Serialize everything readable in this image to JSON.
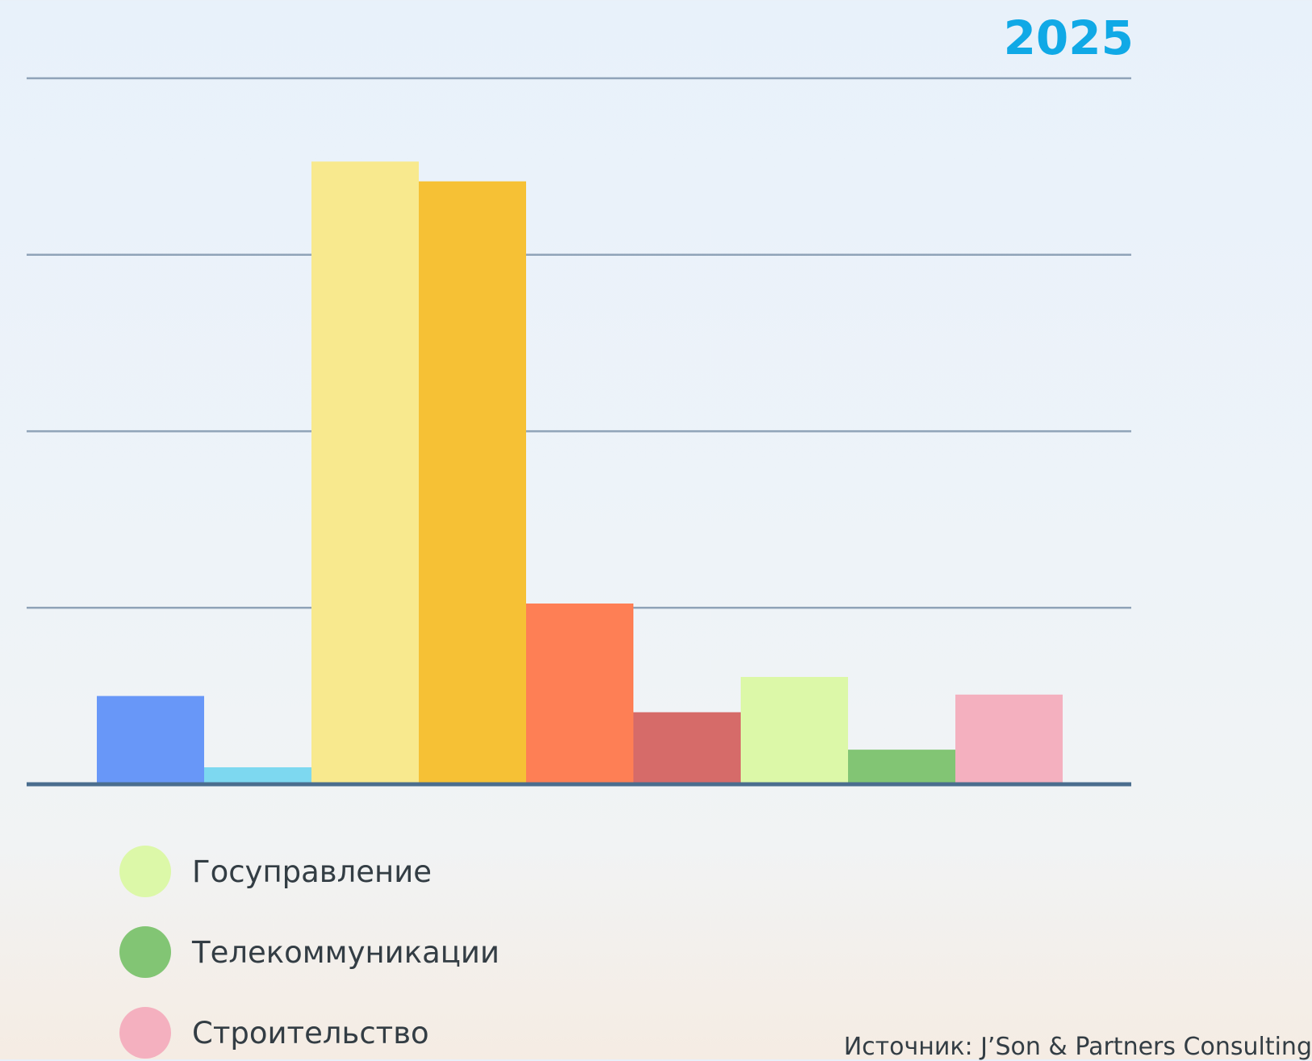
{
  "chart_data": {
    "type": "bar",
    "title": "2025",
    "xlabel": "",
    "ylabel": "",
    "ylim": [
      0,
      100
    ],
    "yticks": [
      0,
      25,
      50,
      75,
      100
    ],
    "grid": true,
    "legend_position": "bottom-left",
    "bars": [
      {
        "value": 12.5,
        "color": "#6897f8"
      },
      {
        "value": 2.4,
        "color": "#7dd8f0"
      },
      {
        "value": 88.2,
        "color": "#f8e98e"
      },
      {
        "value": 85.4,
        "color": "#f6c135"
      },
      {
        "value": 25.6,
        "color": "#fe7f55"
      },
      {
        "value": 10.2,
        "color": "#d66b69"
      },
      {
        "value": 15.2,
        "color": "#dcf8a8"
      },
      {
        "value": 4.9,
        "color": "#82c574"
      },
      {
        "value": 12.7,
        "color": "#f4b0bf"
      }
    ],
    "legend": [
      {
        "name": "Госуправление",
        "color": "#dcf8a8"
      },
      {
        "name": "Телекоммуникации",
        "color": "#82c574"
      },
      {
        "name": "Строительство",
        "color": "#f4b0bf"
      }
    ],
    "source": "Источник: J’Son & Partners Consulting"
  }
}
